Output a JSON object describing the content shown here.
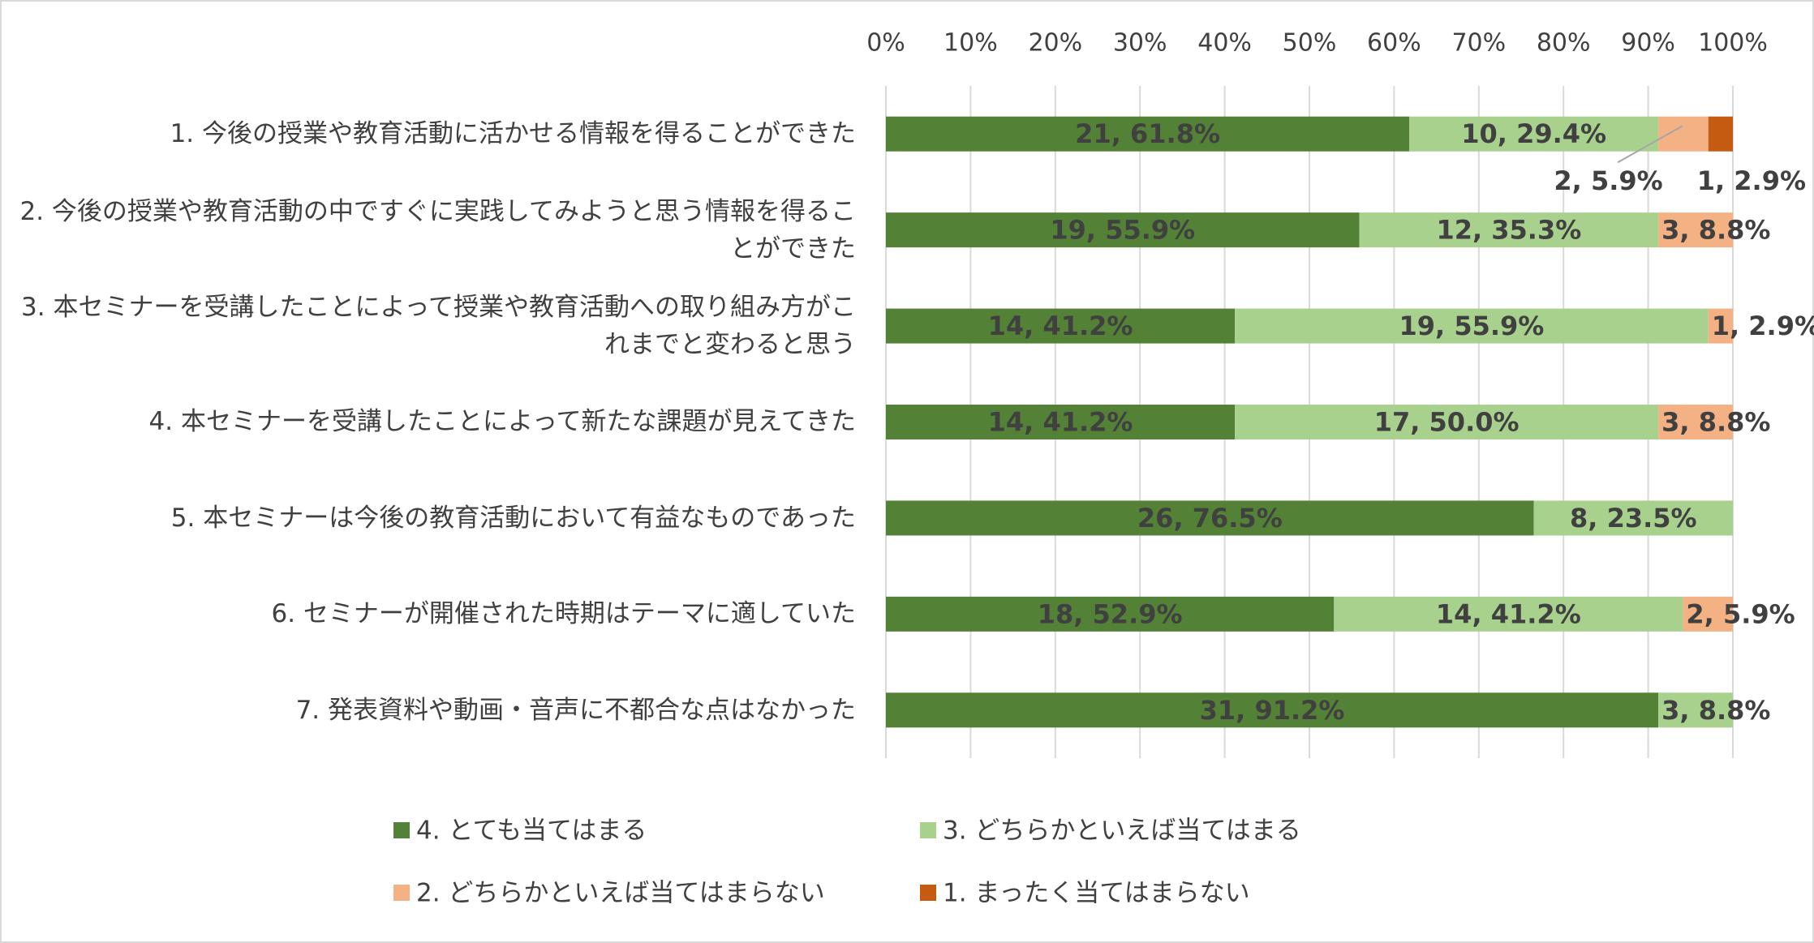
{
  "chart_data": {
    "type": "stacked-bar-horizontal",
    "categories": [
      "1. 今後の授業や教育活動に活かせる情報を得ることができた",
      "2. 今後の授業や教育活動の中ですぐに実践してみようと思う情報を得ることができた",
      "3. 本セミナーを受講したことによって授業や教育活動への取り組み方がこれまでと変わると思う",
      "4. 本セミナーを受講したことによって新たな課題が見えてきた",
      "5. 本セミナーは今後の教育活動において有益なものであった",
      "6. セミナーが開催された時期はテーマに適していた",
      "7. 発表資料や動画・音声に不都合な点はなかった"
    ],
    "series": [
      {
        "name": "4. とても当てはまる",
        "color": "#538135",
        "values": [
          61.8,
          55.9,
          41.2,
          41.2,
          76.5,
          52.9,
          91.2
        ],
        "value_labels": [
          "21, 61.8%",
          "19, 55.9%",
          "14, 41.2%",
          "14, 41.2%",
          "26, 76.5%",
          "18, 52.9%",
          "31, 91.2%"
        ]
      },
      {
        "name": "3. どちらかといえば当てはまる",
        "color": "#a9d18e",
        "values": [
          29.4,
          35.3,
          55.9,
          50.0,
          23.5,
          41.2,
          8.8
        ],
        "value_labels": [
          "10, 29.4%",
          "12, 35.3%",
          "19, 55.9%",
          "17, 50.0%",
          "8, 23.5%",
          "14, 41.2%",
          "3, 8.8%"
        ]
      },
      {
        "name": "2. どちらかといえば当てはまらない",
        "color": "#f4b183",
        "values": [
          5.9,
          8.8,
          2.9,
          8.8,
          null,
          5.9,
          null
        ],
        "value_labels": [
          "2, 5.9%",
          "3, 8.8%",
          "1, 2.9%",
          "3, 8.8%",
          null,
          "2, 5.9%",
          null
        ]
      },
      {
        "name": "1. まったく当てはまらない",
        "color": "#c55a11",
        "values": [
          2.9,
          null,
          null,
          null,
          null,
          null,
          null
        ],
        "value_labels": [
          "1, 2.9%",
          null,
          null,
          null,
          null,
          null,
          null
        ]
      }
    ],
    "xlim": [
      0,
      100
    ],
    "xticks": [
      {
        "value": 0,
        "label": "0%"
      },
      {
        "value": 10,
        "label": "10%"
      },
      {
        "value": 20,
        "label": "20%"
      },
      {
        "value": 30,
        "label": "30%"
      },
      {
        "value": 40,
        "label": "40%"
      },
      {
        "value": 50,
        "label": "50%"
      },
      {
        "value": 60,
        "label": "60%"
      },
      {
        "value": 70,
        "label": "70%"
      },
      {
        "value": 80,
        "label": "80%"
      },
      {
        "value": 90,
        "label": "90%"
      },
      {
        "value": 100,
        "label": "100%"
      }
    ],
    "grid": true
  }
}
